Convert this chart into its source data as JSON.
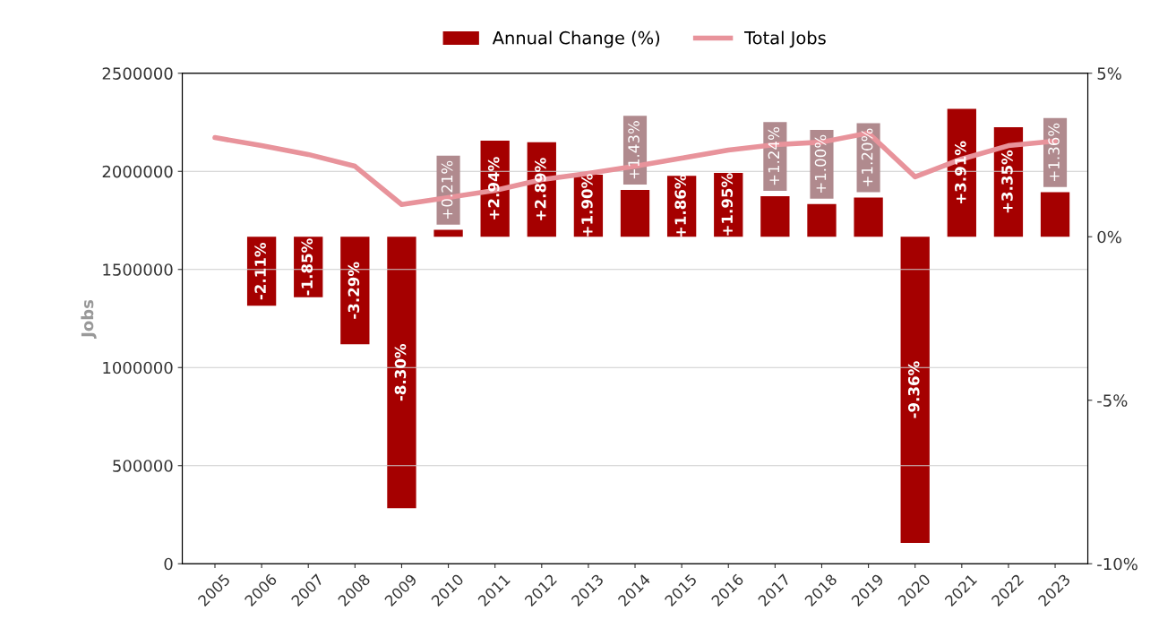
{
  "chart_data": {
    "type": "bar",
    "categories": [
      "2005",
      "2006",
      "2007",
      "2008",
      "2009",
      "2010",
      "2011",
      "2012",
      "2013",
      "2014",
      "2015",
      "2016",
      "2017",
      "2018",
      "2019",
      "2020",
      "2021",
      "2022",
      "2023"
    ],
    "series": [
      {
        "name": "Annual Change (%)",
        "axis": "y2",
        "color": "#a50000",
        "values": [
          null,
          -2.11,
          -1.85,
          -3.29,
          -8.3,
          0.21,
          2.94,
          2.89,
          1.9,
          1.43,
          1.86,
          1.95,
          1.24,
          1.0,
          1.2,
          -9.36,
          3.91,
          3.35,
          1.36
        ],
        "value_labels": [
          null,
          "-2.11%",
          "-1.85%",
          "-3.29%",
          "-8.30%",
          "+0.21%",
          "+2.94%",
          "+2.89%",
          "+1.90%",
          "+1.43%",
          "+1.86%",
          "+1.95%",
          "+1.24%",
          "+1.00%",
          "+1.20%",
          "-9.36%",
          "+3.91%",
          "+3.35%",
          "+1.36%"
        ]
      },
      {
        "name": "Total Jobs",
        "type": "line",
        "axis": "y",
        "color": "#e8939b",
        "values": [
          2172000,
          2131000,
          2086000,
          2026000,
          1831000,
          1867000,
          1903000,
          1958000,
          1990000,
          2026000,
          2067000,
          2108000,
          2136000,
          2149000,
          2195000,
          1972000,
          2063000,
          2131000,
          2154000
        ]
      }
    ],
    "ylabel": "Jobs",
    "ylim": [
      0,
      2500000
    ],
    "yticks": [
      0,
      500000,
      1000000,
      1500000,
      2000000,
      2500000
    ],
    "y2lim": [
      -10,
      5
    ],
    "y2ticks": [
      {
        "value": -10,
        "label": "-10%"
      },
      {
        "value": -5,
        "label": "-5%"
      },
      {
        "value": 0,
        "label": "0%"
      },
      {
        "value": 5,
        "label": "5%"
      }
    ],
    "grid": "y",
    "legend": "top"
  }
}
